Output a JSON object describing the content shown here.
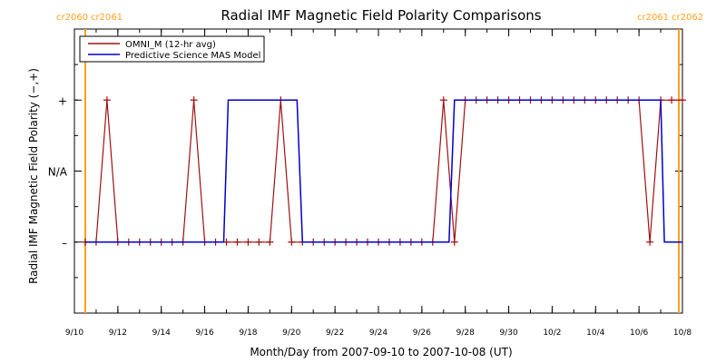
{
  "chart_data": {
    "type": "line",
    "title": "Radial IMF Magnetic Field Polarity Comparisons",
    "xlabel": "Month/Day from 2007-09-10 to 2007-10-08 (UT)",
    "ylabel": "Radial IMF Magnetic Field Polarity (−,+)",
    "x_range": [
      "2007-09-10",
      "2007-10-08"
    ],
    "x_ticks": [
      {
        "date": "2007-09-10",
        "label": "9/10"
      },
      {
        "date": "2007-09-12",
        "label": "9/12"
      },
      {
        "date": "2007-09-14",
        "label": "9/14"
      },
      {
        "date": "2007-09-16",
        "label": "9/16"
      },
      {
        "date": "2007-09-18",
        "label": "9/18"
      },
      {
        "date": "2007-09-20",
        "label": "9/20"
      },
      {
        "date": "2007-09-22",
        "label": "9/22"
      },
      {
        "date": "2007-09-24",
        "label": "9/24"
      },
      {
        "date": "2007-09-26",
        "label": "9/26"
      },
      {
        "date": "2007-09-28",
        "label": "9/28"
      },
      {
        "date": "2007-09-30",
        "label": "9/30"
      },
      {
        "date": "2007-10-02",
        "label": "10/2"
      },
      {
        "date": "2007-10-04",
        "label": "10/4"
      },
      {
        "date": "2007-10-06",
        "label": "10/6"
      },
      {
        "date": "2007-10-08",
        "label": "10/8"
      }
    ],
    "y_levels": [
      {
        "value": 1,
        "label": "+"
      },
      {
        "value": 0,
        "label": "N/A"
      },
      {
        "value": -1,
        "label": "–"
      }
    ],
    "ylim": [
      -2,
      2
    ],
    "grid": false,
    "legend_position": "top-left",
    "carrington_markers": [
      {
        "date": "2007-09-10T12:00",
        "left_label": "cr2060",
        "right_label": "cr2061",
        "color": "#ff9f1f"
      },
      {
        "date": "2007-10-07T20:00",
        "left_label": "cr2061",
        "right_label": "cr2062",
        "color": "#ff9f1f"
      }
    ],
    "series": [
      {
        "name": "OMNI_M (12-hr avg)",
        "color": "#a01010",
        "markers": true,
        "points": [
          {
            "x": "2007-09-10T12:00",
            "y": -1
          },
          {
            "x": "2007-09-11T00:00",
            "y": -1
          },
          {
            "x": "2007-09-11T12:00",
            "y": 1
          },
          {
            "x": "2007-09-12T00:00",
            "y": -1
          },
          {
            "x": "2007-09-12T12:00",
            "y": -1
          },
          {
            "x": "2007-09-13T00:00",
            "y": -1
          },
          {
            "x": "2007-09-13T12:00",
            "y": -1
          },
          {
            "x": "2007-09-14T00:00",
            "y": -1
          },
          {
            "x": "2007-09-14T12:00",
            "y": -1
          },
          {
            "x": "2007-09-15T00:00",
            "y": -1
          },
          {
            "x": "2007-09-15T12:00",
            "y": 1
          },
          {
            "x": "2007-09-16T00:00",
            "y": -1
          },
          {
            "x": "2007-09-16T12:00",
            "y": -1
          },
          {
            "x": "2007-09-17T00:00",
            "y": -1
          },
          {
            "x": "2007-09-17T12:00",
            "y": -1
          },
          {
            "x": "2007-09-18T00:00",
            "y": -1
          },
          {
            "x": "2007-09-18T12:00",
            "y": -1
          },
          {
            "x": "2007-09-19T00:00",
            "y": -1
          },
          {
            "x": "2007-09-19T12:00",
            "y": 1
          },
          {
            "x": "2007-09-20T00:00",
            "y": -1
          },
          {
            "x": "2007-09-20T12:00",
            "y": -1
          },
          {
            "x": "2007-09-21T00:00",
            "y": -1
          },
          {
            "x": "2007-09-21T12:00",
            "y": -1
          },
          {
            "x": "2007-09-22T00:00",
            "y": -1
          },
          {
            "x": "2007-09-22T12:00",
            "y": -1
          },
          {
            "x": "2007-09-23T00:00",
            "y": -1
          },
          {
            "x": "2007-09-23T12:00",
            "y": -1
          },
          {
            "x": "2007-09-24T00:00",
            "y": -1
          },
          {
            "x": "2007-09-24T12:00",
            "y": -1
          },
          {
            "x": "2007-09-25T00:00",
            "y": -1
          },
          {
            "x": "2007-09-25T12:00",
            "y": -1
          },
          {
            "x": "2007-09-26T00:00",
            "y": -1
          },
          {
            "x": "2007-09-26T12:00",
            "y": -1
          },
          {
            "x": "2007-09-27T00:00",
            "y": 1
          },
          {
            "x": "2007-09-27T12:00",
            "y": -1
          },
          {
            "x": "2007-09-28T00:00",
            "y": 1
          },
          {
            "x": "2007-09-28T12:00",
            "y": 1
          },
          {
            "x": "2007-09-29T00:00",
            "y": 1
          },
          {
            "x": "2007-09-29T12:00",
            "y": 1
          },
          {
            "x": "2007-09-30T00:00",
            "y": 1
          },
          {
            "x": "2007-09-30T12:00",
            "y": 1
          },
          {
            "x": "2007-10-01T00:00",
            "y": 1
          },
          {
            "x": "2007-10-01T12:00",
            "y": 1
          },
          {
            "x": "2007-10-02T00:00",
            "y": 1
          },
          {
            "x": "2007-10-02T12:00",
            "y": 1
          },
          {
            "x": "2007-10-03T00:00",
            "y": 1
          },
          {
            "x": "2007-10-03T12:00",
            "y": 1
          },
          {
            "x": "2007-10-04T00:00",
            "y": 1
          },
          {
            "x": "2007-10-04T12:00",
            "y": 1
          },
          {
            "x": "2007-10-05T00:00",
            "y": 1
          },
          {
            "x": "2007-10-05T12:00",
            "y": 1
          },
          {
            "x": "2007-10-06T00:00",
            "y": 1
          },
          {
            "x": "2007-10-06T12:00",
            "y": -1
          },
          {
            "x": "2007-10-07T00:00",
            "y": 1
          },
          {
            "x": "2007-10-07T12:00",
            "y": 1
          },
          {
            "x": "2007-10-08T00:00",
            "y": 1
          }
        ]
      },
      {
        "name": "Predictive Science MAS Model",
        "color": "#0000cc",
        "step": true,
        "points": [
          {
            "x": "2007-09-10T12:00",
            "y": -1
          },
          {
            "x": "2007-09-16T21:00",
            "y": -1
          },
          {
            "x": "2007-09-17T02:00",
            "y": 1
          },
          {
            "x": "2007-09-20T06:00",
            "y": 1
          },
          {
            "x": "2007-09-20T12:00",
            "y": -1
          },
          {
            "x": "2007-09-27T06:00",
            "y": -1
          },
          {
            "x": "2007-09-27T12:00",
            "y": 1
          },
          {
            "x": "2007-10-07T00:00",
            "y": 1
          },
          {
            "x": "2007-10-07T04:00",
            "y": -1
          },
          {
            "x": "2007-10-08T00:00",
            "y": -1
          }
        ]
      }
    ]
  }
}
